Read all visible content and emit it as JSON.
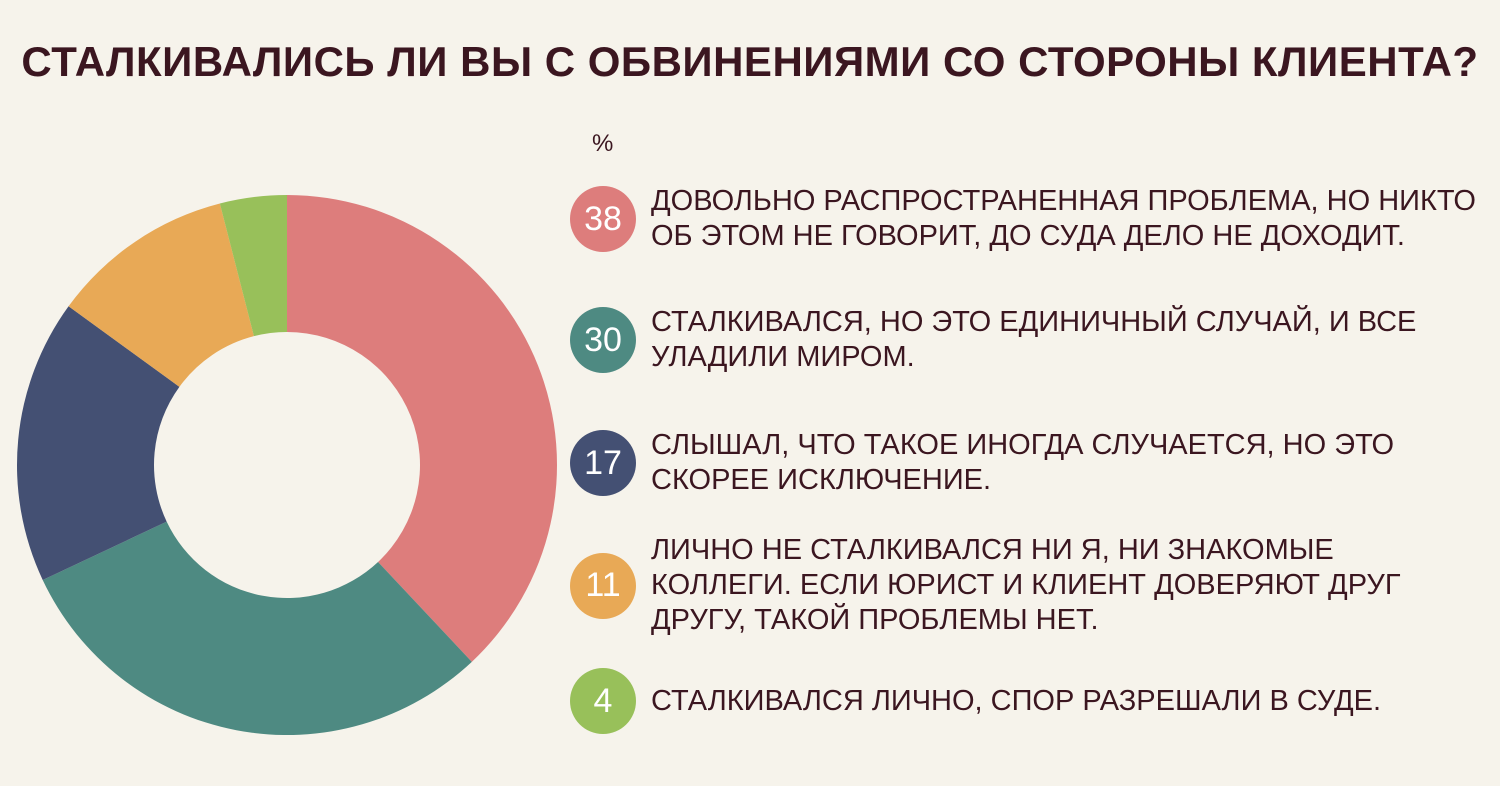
{
  "title": "СТАЛКИВАЛИСЬ ЛИ ВЫ С ОБВИНЕНИЯМИ СО СТОРОНЫ КЛИЕНТА?",
  "unit_label": "%",
  "chart_data": {
    "type": "pie",
    "title": "СТАЛКИВАЛИСЬ ЛИ ВЫ С ОБВИНЕНИЯМИ СО СТОРОНЫ КЛИЕНТА?",
    "unit": "%",
    "legend_position": "right",
    "slices": [
      {
        "value": 38,
        "label_text": "38",
        "label": "ДОВОЛЬНО РАСПРОСТРАНЕННАЯ ПРОБЛЕМА, НО НИКТО ОБ ЭТОМ НЕ ГОВОРИТ, ДО СУДА ДЕЛО НЕ ДОХОДИТ.",
        "color": "#dd7d7c"
      },
      {
        "value": 30,
        "label_text": "30",
        "label": "СТАЛКИВАЛСЯ, НО ЭТО ЕДИНИЧНЫЙ СЛУЧАЙ, И ВСЕ УЛАДИЛИ МИРОМ.",
        "color": "#4e8a82"
      },
      {
        "value": 17,
        "label_text": "17",
        "label": "СЛЫШАЛ, ЧТО ТАКОЕ ИНОГДА СЛУЧАЕТСЯ, НО ЭТО СКОРЕЕ ИСКЛЮЧЕНИЕ.",
        "color": "#445073"
      },
      {
        "value": 11,
        "label_text": "11",
        "label": "ЛИЧНО НЕ СТАЛКИВАЛСЯ НИ Я, НИ ЗНАКОМЫЕ КОЛЛЕГИ. ЕСЛИ ЮРИСТ И КЛИЕНТ ДОВЕРЯЮТ ДРУГ ДРУГУ, ТАКОЙ ПРОБЛЕМЫ НЕТ.",
        "color": "#e8a956"
      },
      {
        "value": 4,
        "label_text": "4",
        "label": "СТАЛКИВАЛСЯ ЛИЧНО, СПОР РАЗРЕШАЛИ В СУДЕ.",
        "color": "#98c05a"
      }
    ]
  }
}
